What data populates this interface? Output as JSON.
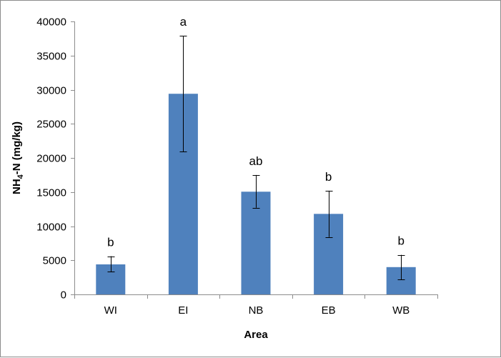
{
  "chart_data": {
    "type": "bar",
    "categories": [
      "WI",
      "EI",
      "NB",
      "EB",
      "WB"
    ],
    "values": [
      4400,
      29400,
      15050,
      11800,
      4000
    ],
    "error_low": [
      3300,
      20900,
      12700,
      8400,
      2200
    ],
    "error_high": [
      5600,
      37900,
      17500,
      15200,
      5800
    ],
    "significance_labels": [
      "b",
      "a",
      "ab",
      "b",
      "b"
    ],
    "xlabel": "Area",
    "ylabel_main": "NH",
    "ylabel_sub": "4",
    "ylabel_rest": "-N (mg/kg)",
    "ylim": [
      0,
      40000
    ],
    "yticks": [
      "0",
      "5000",
      "10000",
      "15000",
      "20000",
      "25000",
      "30000",
      "35000",
      "40000"
    ],
    "bar_color": "#4f81bd",
    "grid": false,
    "legend": "none"
  }
}
